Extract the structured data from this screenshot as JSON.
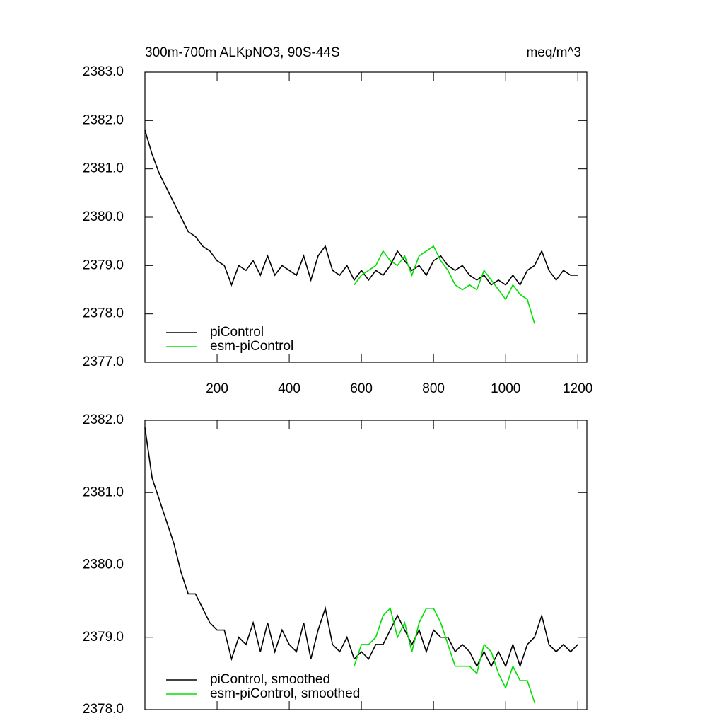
{
  "chart_data": [
    {
      "type": "line",
      "title": "300m-700m ALKpNO3, 90S-44S",
      "units": "meq/m^3",
      "xlim": [
        0,
        1225
      ],
      "xticks": [
        200,
        400,
        600,
        800,
        1000,
        1200
      ],
      "ylim": [
        2377,
        2383
      ],
      "yticks": [
        {
          "value": 2377,
          "label": "2377.0"
        },
        {
          "value": 2378,
          "label": "2378.0"
        },
        {
          "value": 2379,
          "label": "2379.0"
        },
        {
          "value": 2380,
          "label": "2380.0"
        },
        {
          "value": 2381,
          "label": "2381.0"
        },
        {
          "value": 2382,
          "label": "2382.0"
        },
        {
          "value": 2383,
          "label": "2383.0"
        }
      ],
      "legend": "lower left",
      "series": [
        {
          "name": "piControl",
          "color": "#000000",
          "x": [
            0,
            20,
            40,
            60,
            80,
            100,
            120,
            140,
            160,
            180,
            200,
            220,
            240,
            260,
            280,
            300,
            320,
            340,
            360,
            380,
            400,
            420,
            440,
            460,
            480,
            500,
            520,
            540,
            560,
            580,
            600,
            620,
            640,
            660,
            680,
            700,
            720,
            740,
            760,
            780,
            800,
            820,
            840,
            860,
            880,
            900,
            920,
            940,
            960,
            980,
            1000,
            1020,
            1040,
            1060,
            1080,
            1100,
            1120,
            1140,
            1160,
            1180,
            1200
          ],
          "values": [
            2381.8,
            2381.3,
            2380.9,
            2380.6,
            2380.3,
            2380.0,
            2379.7,
            2379.6,
            2379.4,
            2379.3,
            2379.1,
            2379.0,
            2378.6,
            2379.0,
            2378.9,
            2379.1,
            2378.8,
            2379.2,
            2378.8,
            2379.0,
            2378.9,
            2378.8,
            2379.2,
            2378.7,
            2379.2,
            2379.4,
            2378.9,
            2378.8,
            2379.0,
            2378.7,
            2378.9,
            2378.7,
            2378.9,
            2378.8,
            2379.0,
            2379.3,
            2379.1,
            2378.9,
            2379.0,
            2378.8,
            2379.1,
            2379.2,
            2379.0,
            2378.9,
            2379.0,
            2378.8,
            2378.7,
            2378.8,
            2378.6,
            2378.7,
            2378.6,
            2378.8,
            2378.6,
            2378.9,
            2379.0,
            2379.3,
            2378.9,
            2378.7,
            2378.9,
            2378.8,
            2378.8
          ]
        },
        {
          "name": "esm-piControl",
          "color": "#00e000",
          "x": [
            580,
            600,
            620,
            640,
            660,
            680,
            700,
            720,
            740,
            760,
            780,
            800,
            820,
            840,
            860,
            880,
            900,
            920,
            940,
            960,
            980,
            1000,
            1020,
            1040,
            1060,
            1080
          ],
          "values": [
            2378.6,
            2378.8,
            2378.9,
            2379.0,
            2379.3,
            2379.1,
            2379.0,
            2379.2,
            2378.8,
            2379.2,
            2379.3,
            2379.4,
            2379.1,
            2378.9,
            2378.6,
            2378.5,
            2378.6,
            2378.5,
            2378.9,
            2378.7,
            2378.5,
            2378.3,
            2378.6,
            2378.4,
            2378.3,
            2377.8
          ]
        }
      ]
    },
    {
      "type": "line",
      "xlim": [
        0,
        1225
      ],
      "ylim": [
        2378,
        2382
      ],
      "yticks": [
        {
          "value": 2378,
          "label": "2378.0"
        },
        {
          "value": 2379,
          "label": "2379.0"
        },
        {
          "value": 2380,
          "label": "2380.0"
        },
        {
          "value": 2381,
          "label": "2381.0"
        },
        {
          "value": 2382,
          "label": "2382.0"
        }
      ],
      "legend": "lower left",
      "series": [
        {
          "name": "piControl, smoothed",
          "color": "#000000",
          "x": [
            0,
            20,
            40,
            60,
            80,
            100,
            120,
            140,
            160,
            180,
            200,
            220,
            240,
            260,
            280,
            300,
            320,
            340,
            360,
            380,
            400,
            420,
            440,
            460,
            480,
            500,
            520,
            540,
            560,
            580,
            600,
            620,
            640,
            660,
            680,
            700,
            720,
            740,
            760,
            780,
            800,
            820,
            840,
            860,
            880,
            900,
            920,
            940,
            960,
            980,
            1000,
            1020,
            1040,
            1060,
            1080,
            1100,
            1120,
            1140,
            1160,
            1180,
            1200
          ],
          "values": [
            2381.9,
            2381.2,
            2380.9,
            2380.6,
            2380.3,
            2379.9,
            2379.6,
            2379.6,
            2379.4,
            2379.2,
            2379.1,
            2379.1,
            2378.7,
            2379.0,
            2378.9,
            2379.2,
            2378.8,
            2379.2,
            2378.8,
            2379.1,
            2378.9,
            2378.8,
            2379.2,
            2378.7,
            2379.1,
            2379.4,
            2378.9,
            2378.8,
            2379.0,
            2378.7,
            2378.8,
            2378.7,
            2378.9,
            2378.9,
            2379.1,
            2379.3,
            2379.1,
            2378.9,
            2379.1,
            2378.8,
            2379.1,
            2379.0,
            2379.0,
            2378.8,
            2378.9,
            2378.8,
            2378.6,
            2378.8,
            2378.6,
            2378.8,
            2378.6,
            2378.9,
            2378.6,
            2378.9,
            2379.0,
            2379.3,
            2378.9,
            2378.8,
            2378.9,
            2378.8,
            2378.9
          ]
        },
        {
          "name": "esm-piControl, smoothed",
          "color": "#00e000",
          "x": [
            580,
            600,
            620,
            640,
            660,
            680,
            700,
            720,
            740,
            760,
            780,
            800,
            820,
            840,
            860,
            880,
            900,
            920,
            940,
            960,
            980,
            1000,
            1020,
            1040,
            1060,
            1080
          ],
          "values": [
            2378.6,
            2378.9,
            2378.9,
            2379.0,
            2379.3,
            2379.4,
            2379.0,
            2379.2,
            2378.8,
            2379.2,
            2379.4,
            2379.4,
            2379.2,
            2378.9,
            2378.6,
            2378.6,
            2378.6,
            2378.5,
            2378.9,
            2378.8,
            2378.5,
            2378.3,
            2378.6,
            2378.4,
            2378.4,
            2378.1
          ]
        }
      ]
    }
  ]
}
